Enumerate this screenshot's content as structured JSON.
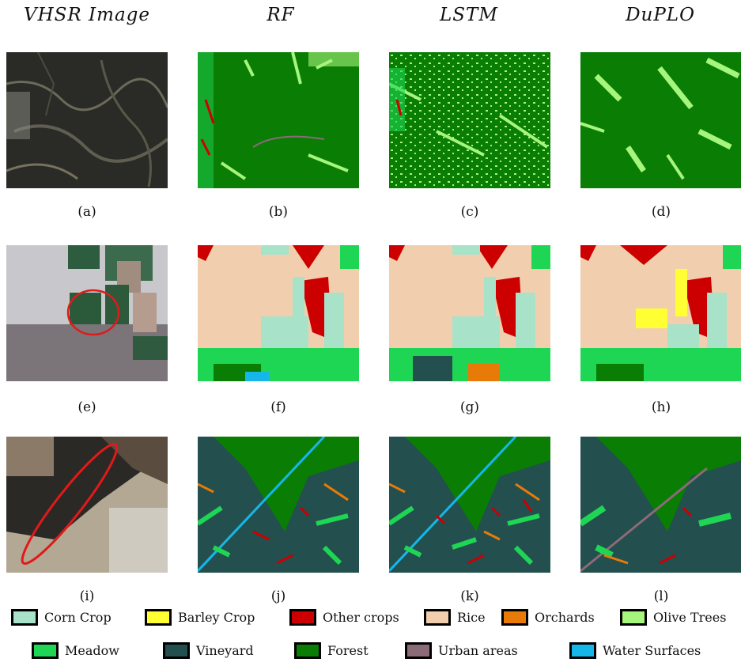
{
  "columns": {
    "vhsr": "VHSR Image",
    "rf": "RF",
    "lstm": "LSTM",
    "duplo": "DuPLO"
  },
  "captions": {
    "a": "(a)",
    "b": "(b)",
    "c": "(c)",
    "d": "(d)",
    "e": "(e)",
    "f": "(f)",
    "g": "(g)",
    "h": "(h)",
    "i": "(i)",
    "j": "(j)",
    "k": "(k)",
    "l": "(l)"
  },
  "legend": {
    "corn": {
      "label": "Corn Crop",
      "color": "#a8e2c8"
    },
    "barley": {
      "label": "Barley Crop",
      "color": "#ffff33"
    },
    "other": {
      "label": "Other crops",
      "color": "#cc0000"
    },
    "rice": {
      "label": "Rice",
      "color": "#f1cfae"
    },
    "orchards": {
      "label": "Orchards",
      "color": "#e87b07"
    },
    "olive": {
      "label": "Olive Trees",
      "color": "#a6f57c"
    },
    "meadow": {
      "label": "Meadow",
      "color": "#1ed654"
    },
    "vineyard": {
      "label": "Vineyard",
      "color": "#234f4f"
    },
    "forest": {
      "label": "Forest",
      "color": "#0a7d05"
    },
    "urban": {
      "label": "Urban areas",
      "color": "#8c6b78"
    },
    "water": {
      "label": "Water Surfaces",
      "color": "#15b7e8"
    }
  }
}
